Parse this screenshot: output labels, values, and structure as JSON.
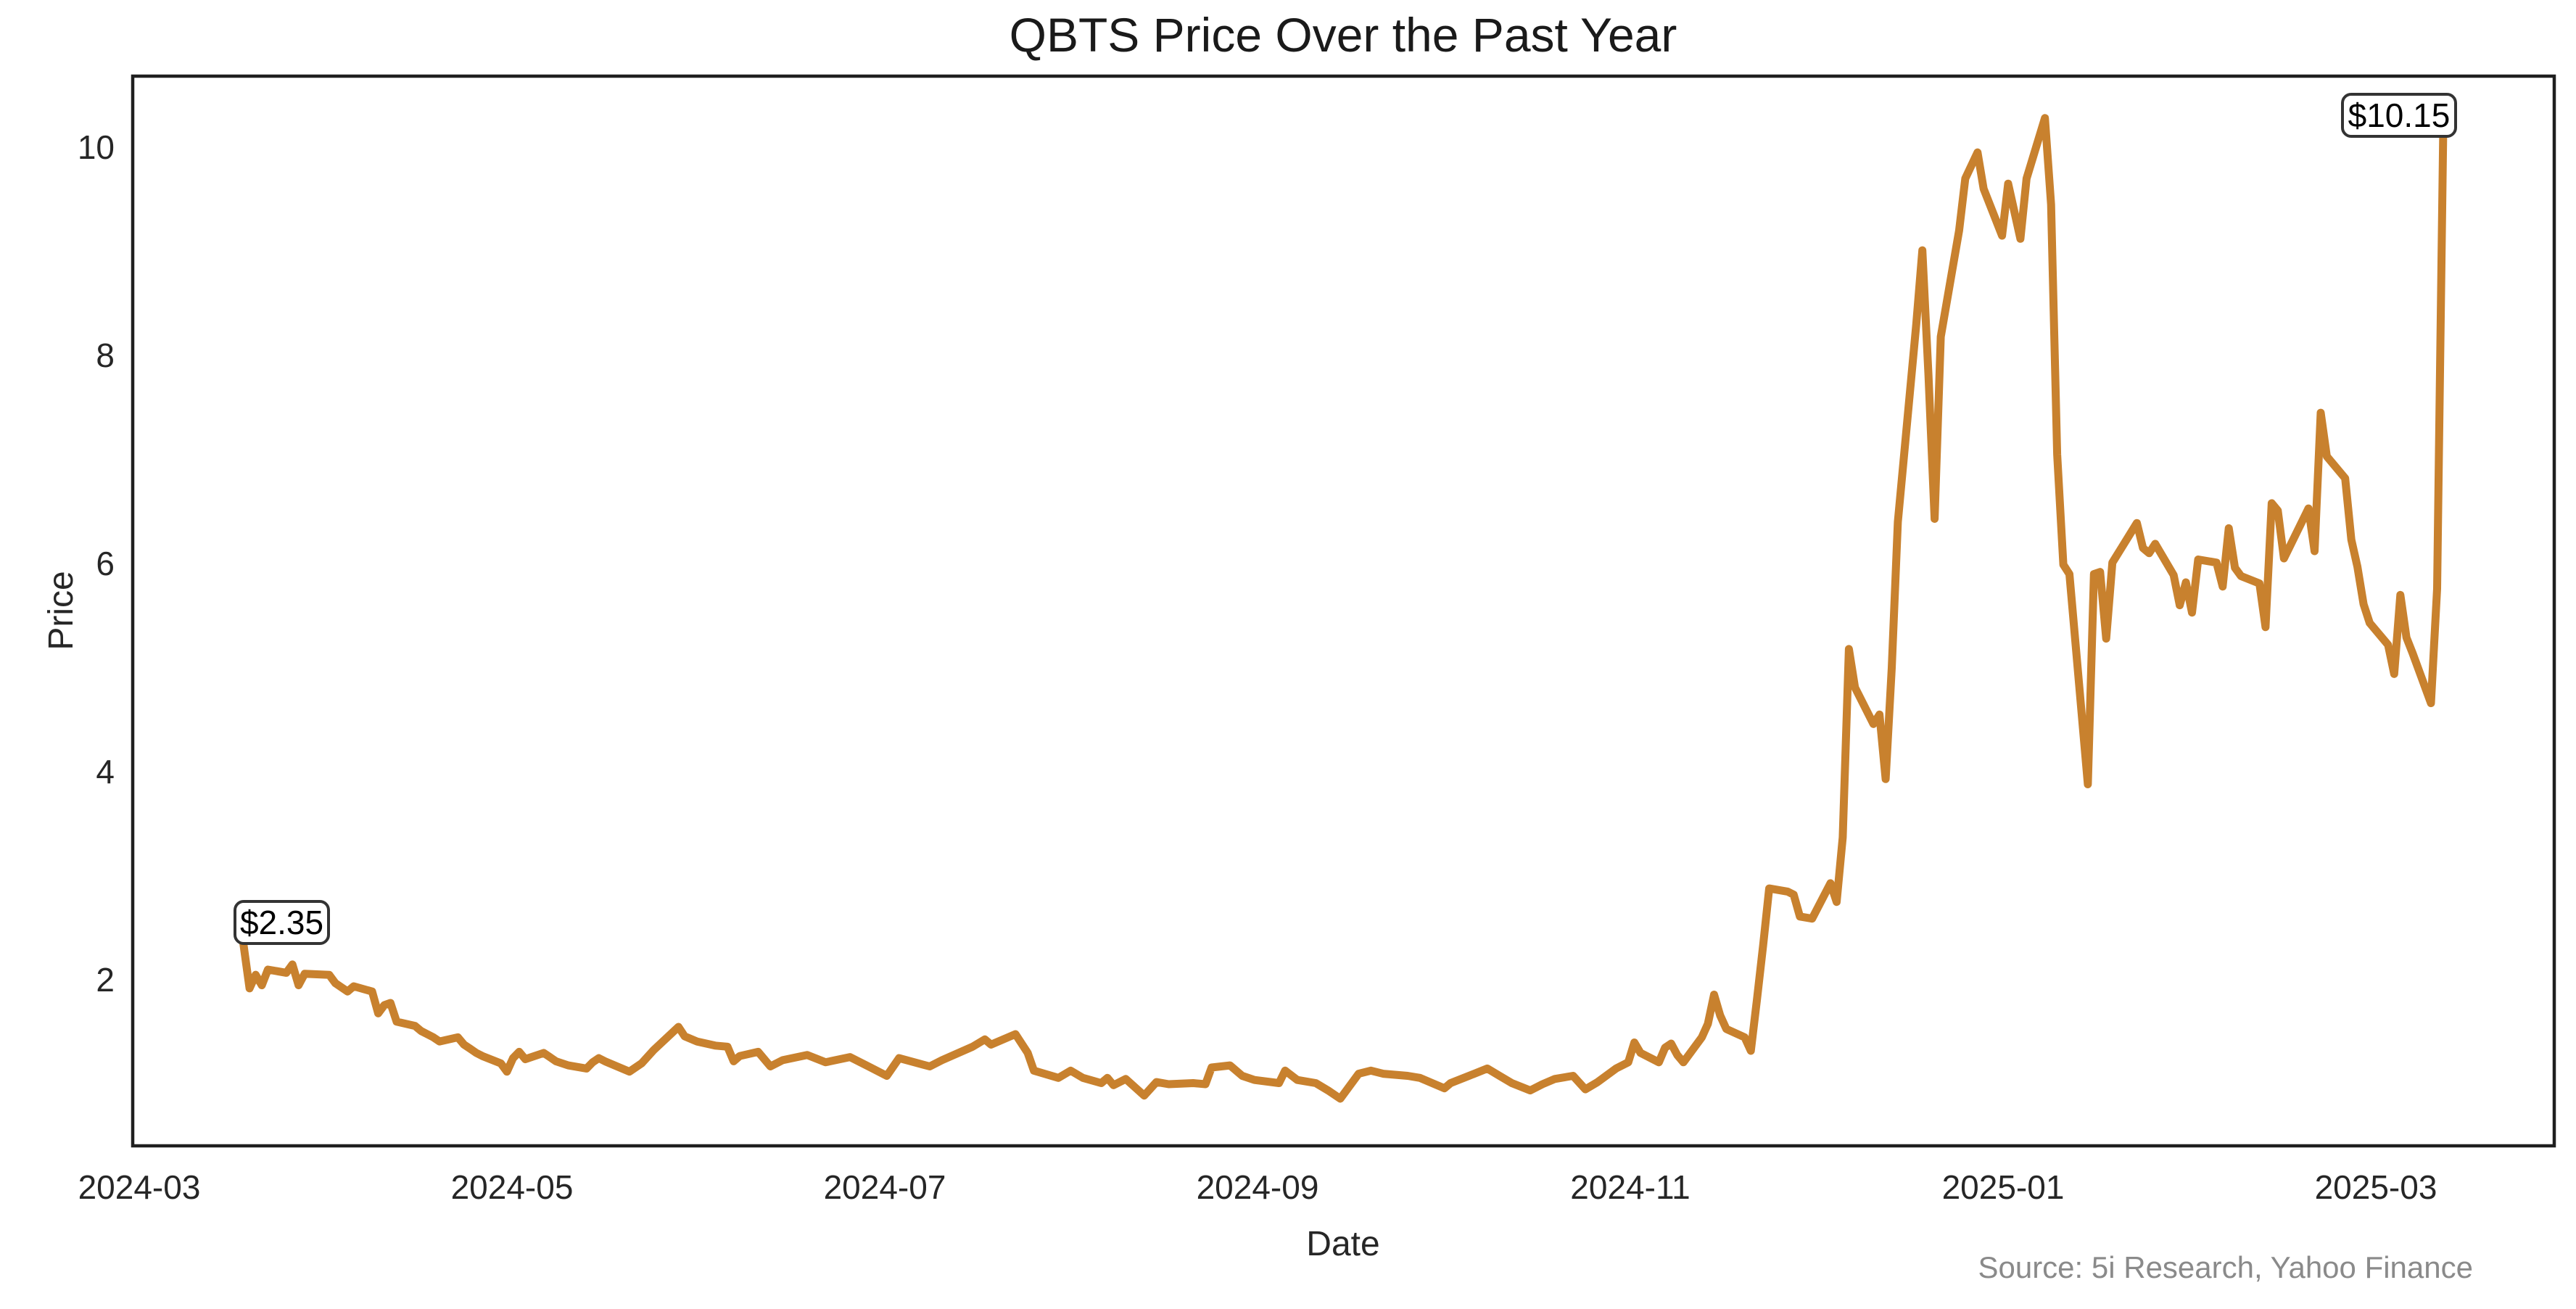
{
  "title": "QBTS Price Over the Past Year",
  "source_note": "Source: 5i Research, Yahoo Finance",
  "annotations": {
    "start_price": "$2.35",
    "end_price": "$10.15"
  },
  "chart_data": {
    "type": "line",
    "title": "QBTS Price Over the Past Year",
    "xlabel": "Date",
    "ylabel": "Price",
    "legend": "none",
    "grid": "off",
    "line_color": "#C8812E",
    "x_tick_labels": [
      "2024-03",
      "2024-05",
      "2024-07",
      "2024-09",
      "2024-11",
      "2025-01",
      "2025-03"
    ],
    "y_tick_labels": [
      "2",
      "4",
      "6",
      "8",
      "10"
    ],
    "y_ticks": [
      2,
      4,
      6,
      8,
      10
    ],
    "ylim": [
      0.41,
      10.68
    ],
    "x_range": [
      "2024-03-01",
      "2025-03-20"
    ],
    "series": [
      {
        "name": "QBTS",
        "points": [
          [
            "2024-03-18",
            2.35
          ],
          [
            "2024-03-19",
            1.92
          ],
          [
            "2024-03-20",
            2.05
          ],
          [
            "2024-03-21",
            1.95
          ],
          [
            "2024-03-22",
            2.1
          ],
          [
            "2024-03-25",
            2.07
          ],
          [
            "2024-03-26",
            2.15
          ],
          [
            "2024-03-27",
            1.95
          ],
          [
            "2024-03-28",
            2.06
          ],
          [
            "2024-04-01",
            2.05
          ],
          [
            "2024-04-02",
            1.97
          ],
          [
            "2024-04-03",
            1.93
          ],
          [
            "2024-04-04",
            1.89
          ],
          [
            "2024-04-05",
            1.94
          ],
          [
            "2024-04-08",
            1.89
          ],
          [
            "2024-04-09",
            1.68
          ],
          [
            "2024-04-10",
            1.76
          ],
          [
            "2024-04-11",
            1.78
          ],
          [
            "2024-04-12",
            1.6
          ],
          [
            "2024-04-15",
            1.56
          ],
          [
            "2024-04-16",
            1.51
          ],
          [
            "2024-04-17",
            1.48
          ],
          [
            "2024-04-18",
            1.45
          ],
          [
            "2024-04-19",
            1.41
          ],
          [
            "2024-04-22",
            1.45
          ],
          [
            "2024-04-23",
            1.38
          ],
          [
            "2024-04-24",
            1.34
          ],
          [
            "2024-04-25",
            1.3
          ],
          [
            "2024-04-26",
            1.27
          ],
          [
            "2024-04-29",
            1.2
          ],
          [
            "2024-04-30",
            1.12
          ],
          [
            "2024-05-01",
            1.25
          ],
          [
            "2024-05-02",
            1.31
          ],
          [
            "2024-05-03",
            1.24
          ],
          [
            "2024-05-06",
            1.3
          ],
          [
            "2024-05-07",
            1.26
          ],
          [
            "2024-05-08",
            1.22
          ],
          [
            "2024-05-10",
            1.18
          ],
          [
            "2024-05-13",
            1.15
          ],
          [
            "2024-05-14",
            1.21
          ],
          [
            "2024-05-15",
            1.25
          ],
          [
            "2024-05-16",
            1.22
          ],
          [
            "2024-05-20",
            1.12
          ],
          [
            "2024-05-22",
            1.2
          ],
          [
            "2024-05-24",
            1.33
          ],
          [
            "2024-05-28",
            1.55
          ],
          [
            "2024-05-29",
            1.46
          ],
          [
            "2024-05-31",
            1.41
          ],
          [
            "2024-06-03",
            1.37
          ],
          [
            "2024-06-05",
            1.36
          ],
          [
            "2024-06-06",
            1.22
          ],
          [
            "2024-06-07",
            1.27
          ],
          [
            "2024-06-10",
            1.31
          ],
          [
            "2024-06-12",
            1.17
          ],
          [
            "2024-06-14",
            1.23
          ],
          [
            "2024-06-18",
            1.28
          ],
          [
            "2024-06-21",
            1.21
          ],
          [
            "2024-06-25",
            1.26
          ],
          [
            "2024-06-28",
            1.17
          ],
          [
            "2024-07-01",
            1.08
          ],
          [
            "2024-07-03",
            1.25
          ],
          [
            "2024-07-08",
            1.17
          ],
          [
            "2024-07-10",
            1.23
          ],
          [
            "2024-07-15",
            1.36
          ],
          [
            "2024-07-17",
            1.43
          ],
          [
            "2024-07-18",
            1.38
          ],
          [
            "2024-07-22",
            1.48
          ],
          [
            "2024-07-24",
            1.3
          ],
          [
            "2024-07-25",
            1.13
          ],
          [
            "2024-07-29",
            1.06
          ],
          [
            "2024-07-31",
            1.13
          ],
          [
            "2024-08-02",
            1.06
          ],
          [
            "2024-08-05",
            1.01
          ],
          [
            "2024-08-06",
            1.06
          ],
          [
            "2024-08-07",
            0.99
          ],
          [
            "2024-08-09",
            1.05
          ],
          [
            "2024-08-12",
            0.89
          ],
          [
            "2024-08-14",
            1.02
          ],
          [
            "2024-08-16",
            1.0
          ],
          [
            "2024-08-20",
            1.01
          ],
          [
            "2024-08-22",
            1.0
          ],
          [
            "2024-08-23",
            1.16
          ],
          [
            "2024-08-26",
            1.18
          ],
          [
            "2024-08-28",
            1.08
          ],
          [
            "2024-08-30",
            1.04
          ],
          [
            "2024-09-03",
            1.01
          ],
          [
            "2024-09-04",
            1.13
          ],
          [
            "2024-09-06",
            1.04
          ],
          [
            "2024-09-09",
            1.01
          ],
          [
            "2024-09-11",
            0.94
          ],
          [
            "2024-09-13",
            0.86
          ],
          [
            "2024-09-16",
            1.1
          ],
          [
            "2024-09-18",
            1.13
          ],
          [
            "2024-09-20",
            1.1
          ],
          [
            "2024-09-24",
            1.08
          ],
          [
            "2024-09-26",
            1.06
          ],
          [
            "2024-09-30",
            0.96
          ],
          [
            "2024-10-01",
            1.01
          ],
          [
            "2024-10-04",
            1.08
          ],
          [
            "2024-10-07",
            1.15
          ],
          [
            "2024-10-09",
            1.08
          ],
          [
            "2024-10-11",
            1.01
          ],
          [
            "2024-10-14",
            0.94
          ],
          [
            "2024-10-16",
            1.0
          ],
          [
            "2024-10-18",
            1.05
          ],
          [
            "2024-10-21",
            1.08
          ],
          [
            "2024-10-23",
            0.95
          ],
          [
            "2024-10-25",
            1.02
          ],
          [
            "2024-10-28",
            1.15
          ],
          [
            "2024-10-30",
            1.21
          ],
          [
            "2024-10-31",
            1.4
          ],
          [
            "2024-11-01",
            1.3
          ],
          [
            "2024-11-04",
            1.21
          ],
          [
            "2024-11-05",
            1.35
          ],
          [
            "2024-11-06",
            1.39
          ],
          [
            "2024-11-07",
            1.28
          ],
          [
            "2024-11-08",
            1.21
          ],
          [
            "2024-11-11",
            1.45
          ],
          [
            "2024-11-12",
            1.58
          ],
          [
            "2024-11-13",
            1.86
          ],
          [
            "2024-11-14",
            1.66
          ],
          [
            "2024-11-15",
            1.53
          ],
          [
            "2024-11-18",
            1.45
          ],
          [
            "2024-11-19",
            1.32
          ],
          [
            "2024-11-20",
            1.81
          ],
          [
            "2024-11-21",
            2.33
          ],
          [
            "2024-11-22",
            2.88
          ],
          [
            "2024-11-25",
            2.85
          ],
          [
            "2024-11-26",
            2.82
          ],
          [
            "2024-11-27",
            2.61
          ],
          [
            "2024-11-29",
            2.59
          ],
          [
            "2024-12-02",
            2.93
          ],
          [
            "2024-12-03",
            2.75
          ],
          [
            "2024-12-04",
            3.37
          ],
          [
            "2024-12-05",
            5.18
          ],
          [
            "2024-12-06",
            4.81
          ],
          [
            "2024-12-09",
            4.46
          ],
          [
            "2024-12-10",
            4.55
          ],
          [
            "2024-12-11",
            3.93
          ],
          [
            "2024-12-12",
            5.0
          ],
          [
            "2024-12-13",
            6.4
          ],
          [
            "2024-12-16",
            8.3
          ],
          [
            "2024-12-17",
            9.01
          ],
          [
            "2024-12-18",
            7.8
          ],
          [
            "2024-12-19",
            6.43
          ],
          [
            "2024-12-20",
            8.18
          ],
          [
            "2024-12-23",
            9.2
          ],
          [
            "2024-12-24",
            9.7
          ],
          [
            "2024-12-26",
            9.95
          ],
          [
            "2024-12-27",
            9.6
          ],
          [
            "2024-12-30",
            9.15
          ],
          [
            "2024-12-31",
            9.65
          ],
          [
            "2025-01-02",
            9.12
          ],
          [
            "2025-01-03",
            9.7
          ],
          [
            "2025-01-06",
            10.28
          ],
          [
            "2025-01-07",
            9.45
          ],
          [
            "2025-01-08",
            7.05
          ],
          [
            "2025-01-09",
            5.99
          ],
          [
            "2025-01-10",
            5.9
          ],
          [
            "2025-01-13",
            3.88
          ],
          [
            "2025-01-14",
            5.9
          ],
          [
            "2025-01-15",
            5.92
          ],
          [
            "2025-01-16",
            5.28
          ],
          [
            "2025-01-17",
            6.01
          ],
          [
            "2025-01-21",
            6.39
          ],
          [
            "2025-01-22",
            6.15
          ],
          [
            "2025-01-23",
            6.1
          ],
          [
            "2025-01-24",
            6.19
          ],
          [
            "2025-01-27",
            5.89
          ],
          [
            "2025-01-28",
            5.6
          ],
          [
            "2025-01-29",
            5.82
          ],
          [
            "2025-01-30",
            5.53
          ],
          [
            "2025-01-31",
            6.04
          ],
          [
            "2025-02-03",
            6.01
          ],
          [
            "2025-02-04",
            5.78
          ],
          [
            "2025-02-05",
            6.34
          ],
          [
            "2025-02-06",
            5.96
          ],
          [
            "2025-02-07",
            5.88
          ],
          [
            "2025-02-10",
            5.81
          ],
          [
            "2025-02-11",
            5.39
          ],
          [
            "2025-02-12",
            6.58
          ],
          [
            "2025-02-13",
            6.51
          ],
          [
            "2025-02-14",
            6.05
          ],
          [
            "2025-02-18",
            6.53
          ],
          [
            "2025-02-19",
            6.12
          ],
          [
            "2025-02-20",
            7.45
          ],
          [
            "2025-02-21",
            7.03
          ],
          [
            "2025-02-24",
            6.82
          ],
          [
            "2025-02-25",
            6.23
          ],
          [
            "2025-02-26",
            5.97
          ],
          [
            "2025-02-27",
            5.61
          ],
          [
            "2025-02-28",
            5.43
          ],
          [
            "2025-03-03",
            5.22
          ],
          [
            "2025-03-04",
            4.94
          ],
          [
            "2025-03-05",
            5.7
          ],
          [
            "2025-03-06",
            5.29
          ],
          [
            "2025-03-07",
            5.14
          ],
          [
            "2025-03-10",
            4.66
          ],
          [
            "2025-03-11",
            5.76
          ],
          [
            "2025-03-12",
            10.15
          ]
        ]
      }
    ]
  }
}
